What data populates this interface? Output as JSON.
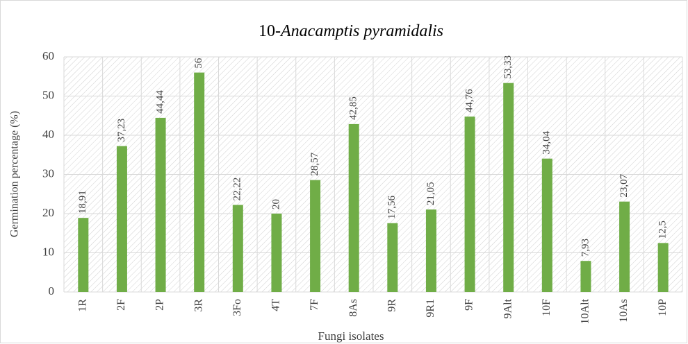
{
  "chart_data": {
    "type": "bar",
    "title": [
      "10-",
      "Anacamptis pyramidalis"
    ],
    "x_label": "Fungi isolates",
    "y_label": "Germination percentage (%)",
    "categories": [
      "1R",
      "2F",
      "2P",
      "3R",
      "3Fo",
      "4T",
      "7F",
      "8As",
      "9R",
      "9R1",
      "9F",
      "9Alt",
      "10F",
      "10Alt",
      "10As",
      "10P"
    ],
    "values": [
      18.91,
      37.23,
      44.44,
      56,
      22.22,
      20,
      28.57,
      42.85,
      17.56,
      21.05,
      44.76,
      53.33,
      34.04,
      7.93,
      23.07,
      12.5
    ],
    "value_labels": [
      "18,91",
      "37,23",
      "44,44",
      "56",
      "22,22",
      "20",
      "28,57",
      "42,85",
      "17,56",
      "21,05",
      "44,76",
      "53,33",
      "34,04",
      "7,93",
      "23,07",
      "12,5"
    ],
    "color": "#70ad47",
    "ylim": [
      0,
      60
    ],
    "yticks": [
      0,
      10,
      20,
      30,
      40,
      50,
      60
    ],
    "grid": true
  }
}
